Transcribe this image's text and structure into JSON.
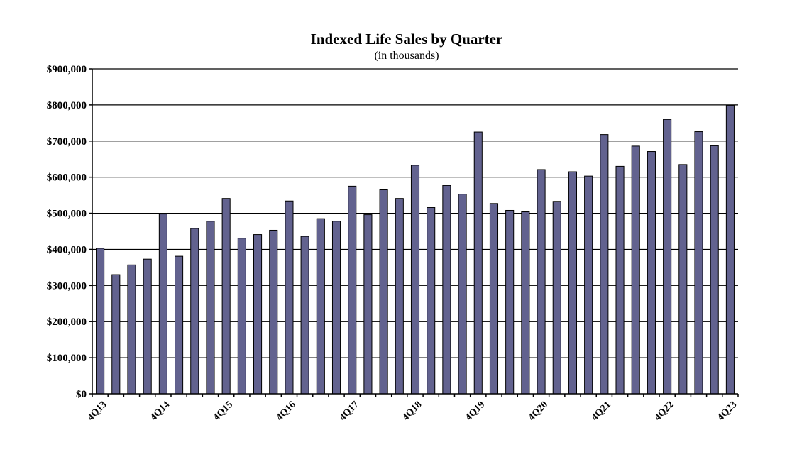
{
  "chart_data": {
    "type": "bar",
    "title": "Indexed Life Sales by Quarter",
    "subtitle": "(in thousands)",
    "xlabel": "",
    "ylabel": "",
    "ylim": [
      0,
      900000
    ],
    "yticks": [
      0,
      100000,
      200000,
      300000,
      400000,
      500000,
      600000,
      700000,
      800000,
      900000
    ],
    "ytick_labels": [
      "$0",
      "$100,000",
      "$200,000",
      "$300,000",
      "$400,000",
      "$500,000",
      "$600,000",
      "$700,000",
      "$800,000",
      "$900,000"
    ],
    "xtick_labels": [
      {
        "index": 0,
        "label": "4Q13"
      },
      {
        "index": 4,
        "label": "4Q14"
      },
      {
        "index": 8,
        "label": "4Q15"
      },
      {
        "index": 12,
        "label": "4Q16"
      },
      {
        "index": 16,
        "label": "4Q17"
      },
      {
        "index": 20,
        "label": "4Q18"
      },
      {
        "index": 24,
        "label": "4Q19"
      },
      {
        "index": 28,
        "label": "4Q20"
      },
      {
        "index": 32,
        "label": "4Q21"
      },
      {
        "index": 36,
        "label": "4Q22"
      },
      {
        "index": 40,
        "label": "4Q23"
      }
    ],
    "categories": [
      "4Q13",
      "1Q14",
      "2Q14",
      "3Q14",
      "4Q14",
      "1Q15",
      "2Q15",
      "3Q15",
      "4Q15",
      "1Q16",
      "2Q16",
      "3Q16",
      "4Q16",
      "1Q17",
      "2Q17",
      "3Q17",
      "4Q17",
      "1Q18",
      "2Q18",
      "3Q18",
      "4Q18",
      "1Q19",
      "2Q19",
      "3Q19",
      "4Q19",
      "1Q20",
      "2Q20",
      "3Q20",
      "4Q20",
      "1Q21",
      "2Q21",
      "3Q21",
      "4Q21",
      "1Q22",
      "2Q22",
      "3Q22",
      "4Q22",
      "1Q23",
      "2Q23",
      "3Q23",
      "4Q23"
    ],
    "values": [
      403000,
      330000,
      357000,
      373000,
      498000,
      381000,
      458000,
      478000,
      541000,
      431000,
      441000,
      453000,
      534000,
      436000,
      485000,
      478000,
      575000,
      496000,
      565000,
      541000,
      633000,
      516000,
      577000,
      553000,
      725000,
      527000,
      508000,
      504000,
      621000,
      533000,
      615000,
      603000,
      718000,
      630000,
      686000,
      671000,
      760000,
      635000,
      726000,
      687000,
      799000
    ],
    "bar_color": "#62628f",
    "grid": true,
    "legend": "none"
  }
}
